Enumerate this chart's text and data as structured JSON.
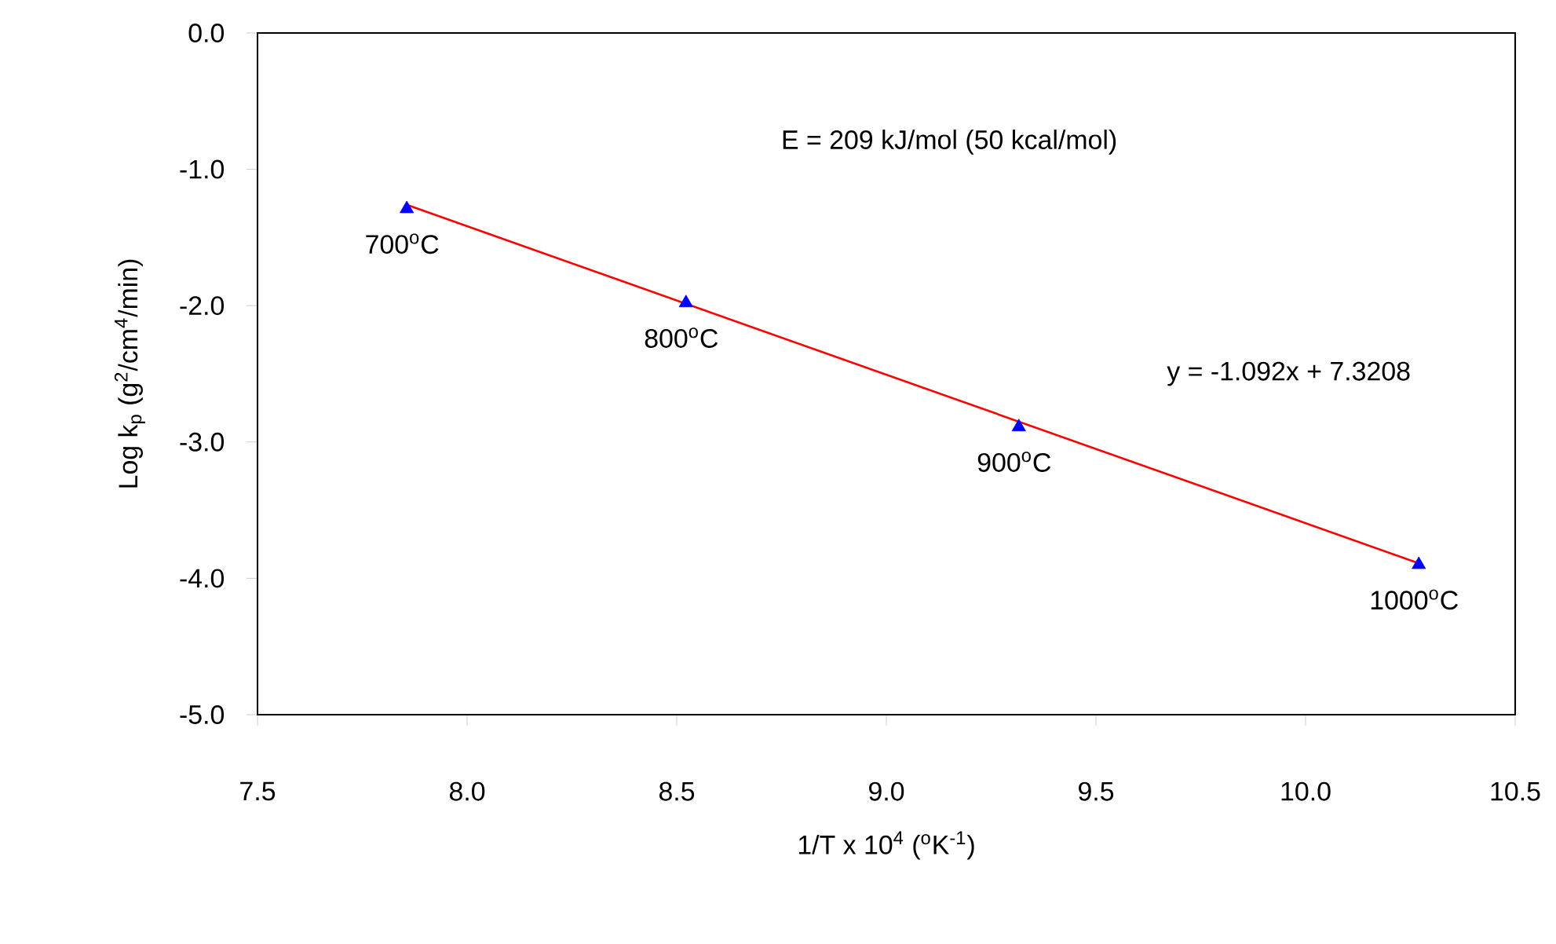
{
  "chart_data": {
    "type": "scatter",
    "xlabel": "1/T x 10$^{4}$ ($^{o}$K$^{-1}$)",
    "ylabel": "Log k$_{p}$ (g$^{2}$/cm$^{4}$/min)",
    "xlim": [
      7.5,
      10.5
    ],
    "ylim": [
      -5.0,
      0.0
    ],
    "xticks": [
      {
        "value": 7.5,
        "label": "7.5"
      },
      {
        "value": 8.0,
        "label": "8.0"
      },
      {
        "value": 8.5,
        "label": "8.5"
      },
      {
        "value": 9.0,
        "label": "9.0"
      },
      {
        "value": 9.5,
        "label": "9.5"
      },
      {
        "value": 10.0,
        "label": "10.0"
      },
      {
        "value": 10.5,
        "label": "10.5"
      }
    ],
    "yticks": [
      {
        "value": 0.0,
        "label": "0.0"
      },
      {
        "value": -1.0,
        "label": "-1.0"
      },
      {
        "value": -2.0,
        "label": "-2.0"
      },
      {
        "value": -3.0,
        "label": "-3.0"
      },
      {
        "value": -4.0,
        "label": "-4.0"
      },
      {
        "value": -5.0,
        "label": "-5.0"
      }
    ],
    "series": [
      {
        "color": "#0000ff",
        "marker": "triangle",
        "x": [
          7.856,
          8.522,
          9.316,
          10.27
        ],
        "values": [
          -1.29,
          -1.98,
          -2.89,
          -3.9
        ]
      },
      {
        "type": "line",
        "color": "#ff0000",
        "line_style": "solid",
        "x": [
          7.856,
          10.27
        ],
        "values": [
          -1.26,
          -3.89
        ]
      }
    ],
    "annotations": [
      {
        "text": "700$^{o}$C",
        "x": 7.856,
        "y": -1.29
      },
      {
        "text": "800$^{o}$C",
        "x": 8.522,
        "y": -1.98
      },
      {
        "text": "900$^{o}$C",
        "x": 9.316,
        "y": -2.89
      },
      {
        "text": "1000$^{o}$C",
        "x": 10.27,
        "y": -3.9
      },
      "E = 209 kJ/mol (50 kcal/mol)",
      "y = -1.092x + 7.3208"
    ]
  }
}
